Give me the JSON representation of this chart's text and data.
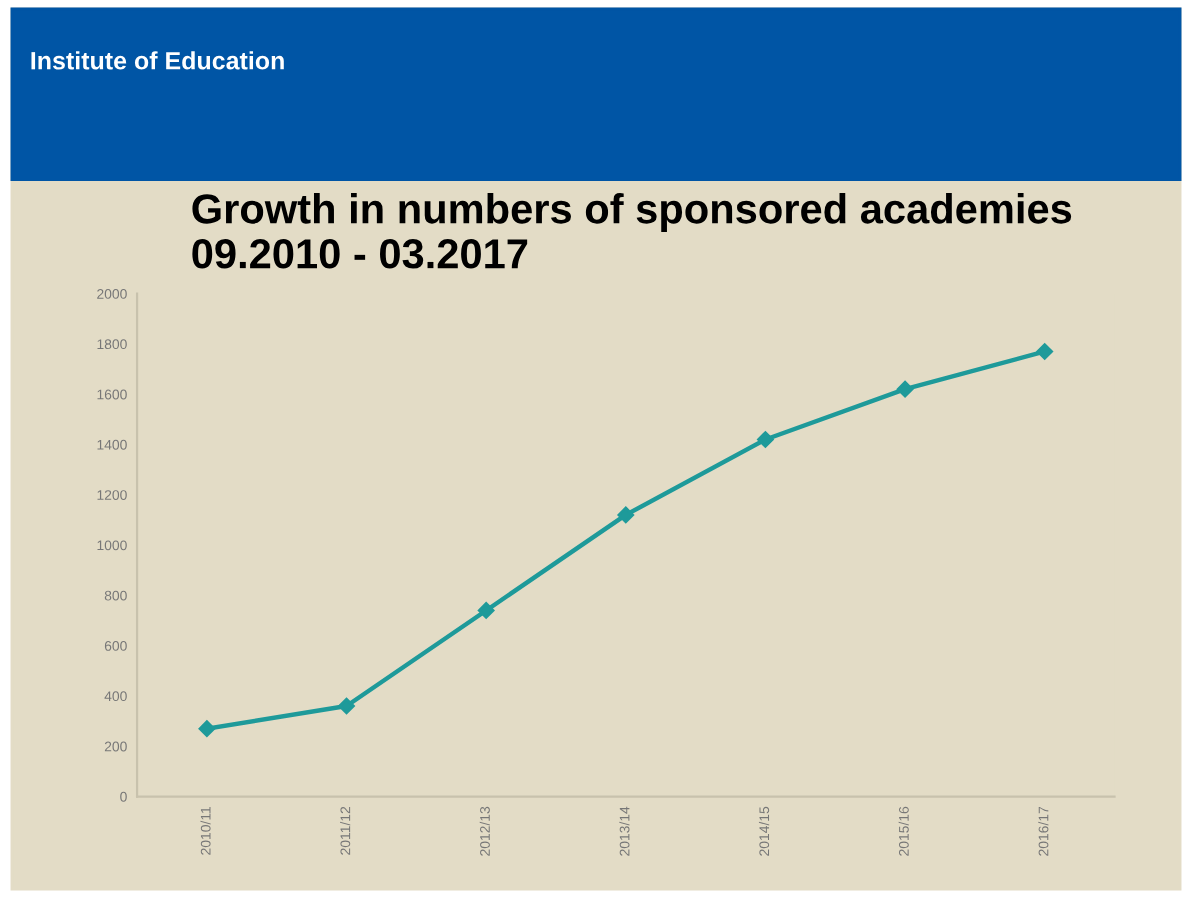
{
  "chart_data": {
    "type": "line",
    "title": "Growth in numbers of sponsored academies 09.2010 - 03.2017",
    "categories": [
      "2010/11",
      "2011/12",
      "2012/13",
      "2013/14",
      "2014/15",
      "2015/16",
      "2016/17"
    ],
    "series": [
      {
        "color": "#1e9a9a",
        "values": [
          270,
          360,
          740,
          1120,
          1420,
          1620,
          1770
        ]
      }
    ],
    "ylim": [
      0,
      2000
    ],
    "yticks": [
      0,
      200,
      400,
      600,
      800,
      1000,
      1200,
      1400,
      1600,
      1800,
      2000
    ],
    "marker": "diamond",
    "grid": false,
    "legend": false,
    "annotations": [
      "Institute of Education"
    ]
  }
}
